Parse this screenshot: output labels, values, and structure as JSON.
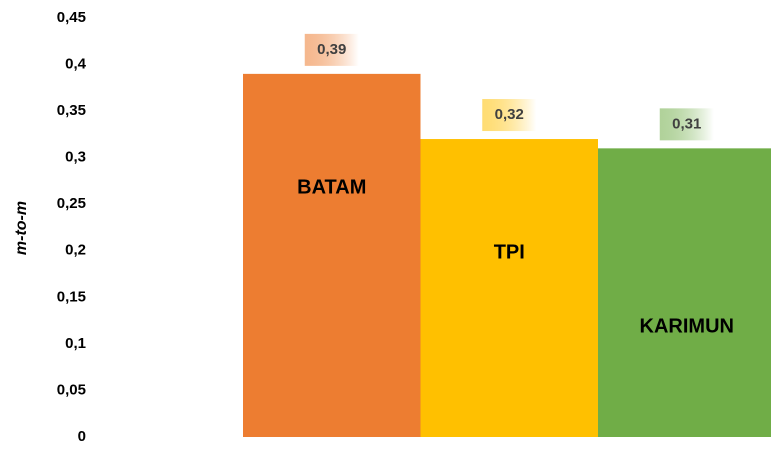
{
  "chart_data": {
    "type": "bar",
    "y_label": "m-to-m",
    "categories": [
      "BATAM",
      "TPI",
      "KARIMUN"
    ],
    "values": [
      0.39,
      0.32,
      0.31
    ],
    "value_labels": [
      "0,39",
      "0,32",
      "0,31"
    ],
    "colors": [
      "#ED7D31",
      "#FFC000",
      "#70AD47"
    ],
    "ylim": [
      0,
      0.45
    ],
    "yticks": [
      0,
      {
        "value": 0.05,
        "label": "0,05"
      },
      {
        "value": 0.1,
        "label": "0,1"
      },
      {
        "value": 0.15,
        "label": "0,15"
      },
      {
        "value": 0.2,
        "label": "0,2"
      },
      {
        "value": 0.25,
        "label": "0,25"
      },
      {
        "value": 0.3,
        "label": "0,3"
      },
      {
        "value": 0.35,
        "label": "0,35"
      },
      {
        "value": 0.4,
        "label": "0,4"
      },
      {
        "value": 0.45,
        "label": "0,45"
      }
    ],
    "grid": false
  }
}
